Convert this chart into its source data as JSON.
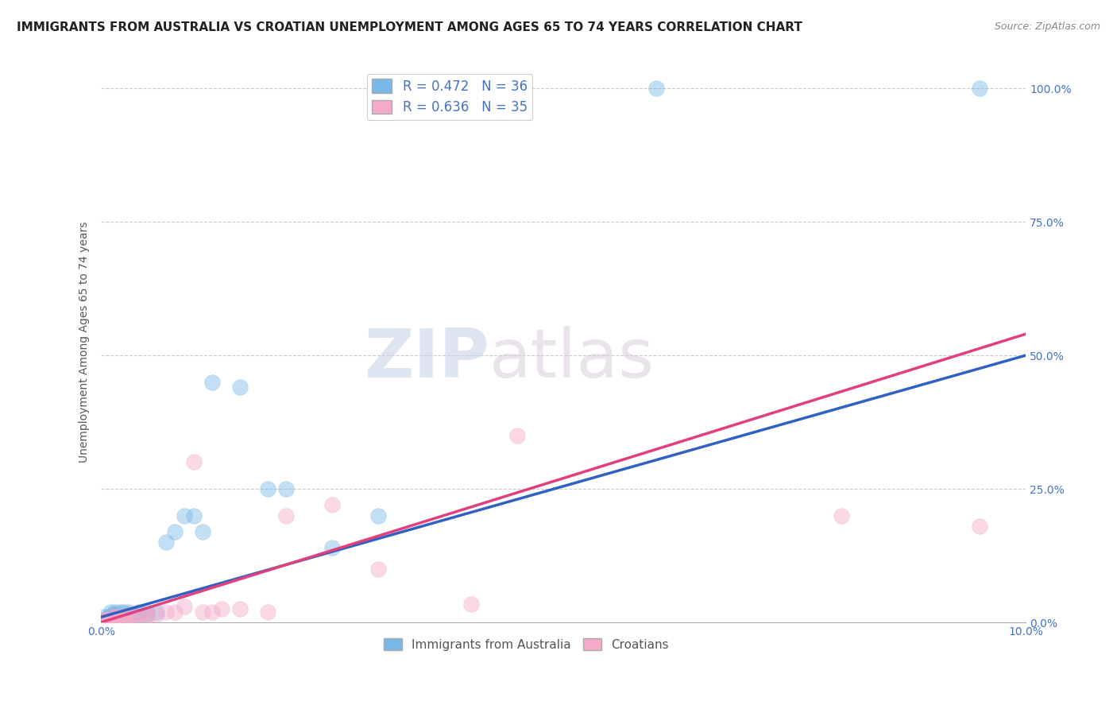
{
  "title": "IMMIGRANTS FROM AUSTRALIA VS CROATIAN UNEMPLOYMENT AMONG AGES 65 TO 74 YEARS CORRELATION CHART",
  "source": "Source: ZipAtlas.com",
  "ylabel": "Unemployment Among Ages 65 to 74 years",
  "xmin": 0.0,
  "xmax": 0.1,
  "ymin": 0.0,
  "ymax": 1.05,
  "ytick_labels": [
    "0.0%",
    "25.0%",
    "50.0%",
    "75.0%",
    "100.0%"
  ],
  "ytick_vals": [
    0.0,
    0.25,
    0.5,
    0.75,
    1.0
  ],
  "xtick_vals": [
    0.0,
    0.1
  ],
  "xtick_labels": [
    "0.0%",
    "10.0%"
  ],
  "legend_line1": "R = 0.472   N = 36",
  "legend_line2": "R = 0.636   N = 35",
  "blue_scatter": [
    [
      0.0002,
      0.005
    ],
    [
      0.0003,
      0.01
    ],
    [
      0.0005,
      0.005
    ],
    [
      0.0006,
      0.005
    ],
    [
      0.0008,
      0.01
    ],
    [
      0.001,
      0.02
    ],
    [
      0.001,
      0.01
    ],
    [
      0.0012,
      0.015
    ],
    [
      0.0013,
      0.005
    ],
    [
      0.0015,
      0.02
    ],
    [
      0.0016,
      0.015
    ],
    [
      0.0018,
      0.01
    ],
    [
      0.002,
      0.02
    ],
    [
      0.002,
      0.01
    ],
    [
      0.0025,
      0.02
    ],
    [
      0.003,
      0.02
    ],
    [
      0.003,
      0.015
    ],
    [
      0.0035,
      0.015
    ],
    [
      0.004,
      0.015
    ],
    [
      0.004,
      0.02
    ],
    [
      0.005,
      0.02
    ],
    [
      0.005,
      0.015
    ],
    [
      0.006,
      0.02
    ],
    [
      0.007,
      0.15
    ],
    [
      0.008,
      0.17
    ],
    [
      0.009,
      0.2
    ],
    [
      0.01,
      0.2
    ],
    [
      0.011,
      0.17
    ],
    [
      0.012,
      0.45
    ],
    [
      0.015,
      0.44
    ],
    [
      0.018,
      0.25
    ],
    [
      0.02,
      0.25
    ],
    [
      0.025,
      0.14
    ],
    [
      0.03,
      0.2
    ],
    [
      0.06,
      1.0
    ],
    [
      0.095,
      1.0
    ]
  ],
  "pink_scatter": [
    [
      0.0002,
      0.005
    ],
    [
      0.0004,
      0.005
    ],
    [
      0.0006,
      0.005
    ],
    [
      0.0008,
      0.005
    ],
    [
      0.001,
      0.005
    ],
    [
      0.0012,
      0.01
    ],
    [
      0.0014,
      0.005
    ],
    [
      0.0016,
      0.01
    ],
    [
      0.0018,
      0.005
    ],
    [
      0.002,
      0.01
    ],
    [
      0.0022,
      0.01
    ],
    [
      0.0025,
      0.01
    ],
    [
      0.003,
      0.015
    ],
    [
      0.003,
      0.005
    ],
    [
      0.0035,
      0.01
    ],
    [
      0.004,
      0.01
    ],
    [
      0.005,
      0.01
    ],
    [
      0.005,
      0.015
    ],
    [
      0.006,
      0.015
    ],
    [
      0.007,
      0.02
    ],
    [
      0.008,
      0.02
    ],
    [
      0.009,
      0.03
    ],
    [
      0.01,
      0.3
    ],
    [
      0.011,
      0.02
    ],
    [
      0.012,
      0.02
    ],
    [
      0.013,
      0.025
    ],
    [
      0.015,
      0.025
    ],
    [
      0.018,
      0.02
    ],
    [
      0.02,
      0.2
    ],
    [
      0.025,
      0.22
    ],
    [
      0.03,
      0.1
    ],
    [
      0.04,
      0.035
    ],
    [
      0.045,
      0.35
    ],
    [
      0.08,
      0.2
    ],
    [
      0.095,
      0.18
    ]
  ],
  "blue_line": [
    [
      0.0,
      0.01
    ],
    [
      0.1,
      0.5
    ]
  ],
  "pink_line": [
    [
      0.0,
      0.0
    ],
    [
      0.1,
      0.54
    ]
  ],
  "title_fontsize": 11,
  "source_fontsize": 9,
  "label_fontsize": 10,
  "tick_fontsize": 10,
  "scatter_alpha": 0.45,
  "scatter_size": 200,
  "blue_color": "#7ab8e8",
  "pink_color": "#f4aac8",
  "blue_line_color": "#3060c0",
  "pink_line_color": "#e04080",
  "watermark_zip": "ZIP",
  "watermark_atlas": "atlas",
  "background_color": "#ffffff",
  "grid_color": "#cccccc"
}
